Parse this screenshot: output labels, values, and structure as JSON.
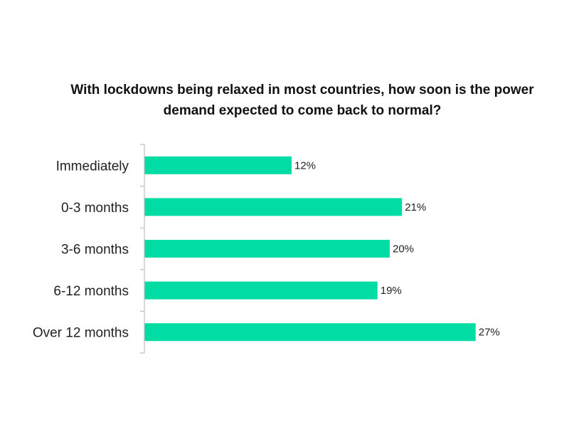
{
  "chart_data": {
    "type": "bar",
    "orientation": "horizontal",
    "title": "With lockdowns being relaxed in most countries, how soon is the power demand expected to come back to normal?",
    "categories": [
      "Immediately",
      "0-3 months",
      "3-6 months",
      "6-12 months",
      "Over 12 months"
    ],
    "values": [
      12,
      21,
      20,
      19,
      27
    ],
    "value_labels": [
      "12%",
      "21%",
      "20%",
      "19%",
      "27%"
    ],
    "unit": "%",
    "bar_color": "#00DCA4",
    "xlim": [
      0,
      30
    ],
    "grid": false,
    "legend": "none"
  }
}
